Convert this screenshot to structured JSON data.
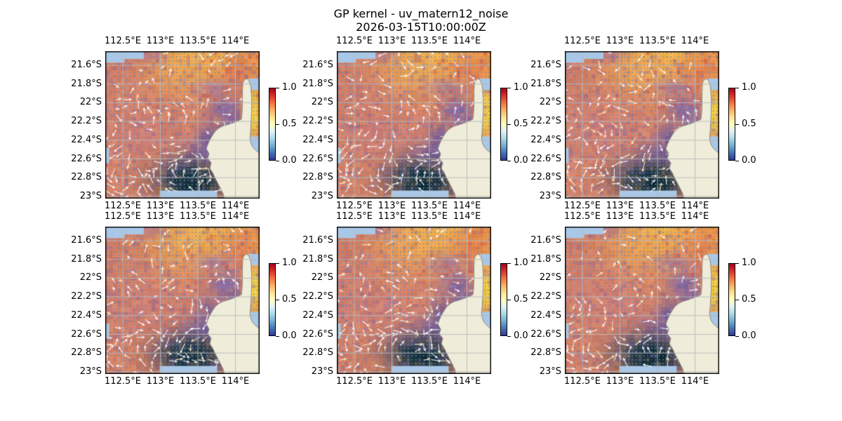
{
  "figure": {
    "title": "GP kernel - uv_matern12_noise",
    "timestamp": "2026-03-15T10:00:00Z"
  },
  "axes": {
    "lon_ticks": [
      "112.5°E",
      "113°E",
      "113.5°E",
      "114°E"
    ],
    "lat_ticks": [
      "21.6°S",
      "21.8°S",
      "22°S",
      "22.2°S",
      "22.4°S",
      "22.6°S",
      "22.8°S",
      "23°S"
    ]
  },
  "colorbar": {
    "tick_labels": [
      "1.0",
      "0.5",
      "0.0"
    ]
  },
  "panels": {
    "rows": 2,
    "cols": 3,
    "count": 6
  },
  "colors": {
    "ocean_background": "#A9C7E6",
    "land": "#EFEDD9",
    "coastline": "#8A8A8A",
    "gridline": "#BCBCBC",
    "colorbar_top": "#A50026",
    "colorbar_mid": "#FFFFBF",
    "colorbar_bottom": "#313695"
  },
  "chart_data": {
    "type": "heatmap",
    "subtype": "geographic pcolormesh with quiver arrows, 6 near-identical GP sample panels",
    "title": "GP kernel - uv_matern12_noise",
    "subtitle": "2026-03-15T10:00:00Z",
    "layout": "2 rows x 3 columns",
    "x_axis": {
      "label": "",
      "ticks_deg_east": [
        112.5,
        113.0,
        113.5,
        114.0
      ],
      "range_deg_east": [
        112.27,
        114.33
      ]
    },
    "y_axis": {
      "label": "",
      "ticks_deg_south": [
        21.6,
        21.8,
        22.0,
        22.2,
        22.4,
        22.6,
        22.8,
        23.0
      ],
      "range_deg_south": [
        21.45,
        23.02
      ]
    },
    "colorbar": {
      "ticks": [
        1.0,
        0.5,
        0.0
      ],
      "range": [
        0.0,
        1.0
      ],
      "colormap": "RdYlBu_r",
      "shrink": 0.5,
      "position": "right of each panel"
    },
    "grid": "gray graticule lines at every labeled tick, drawn over land and sea",
    "region": "Exmouth / North West Cape, Western Australia; land at lower right, narrow peninsula at top right with gulf water strip at right edge",
    "field_description": "scalar field high (orange/yellow ~0.7-1.0) in the north, mid (salmon ~0.5-0.6) in west, purple band (~0.3) along coast, very low dark navy patch (~0.0-0.1) near south coast; bright yellow cells in gulf strip east of peninsula",
    "quiver": "dense grid of small slate-blue dots (weak vectors) with scattered short white/cream arrows, densest in the southern half"
  }
}
